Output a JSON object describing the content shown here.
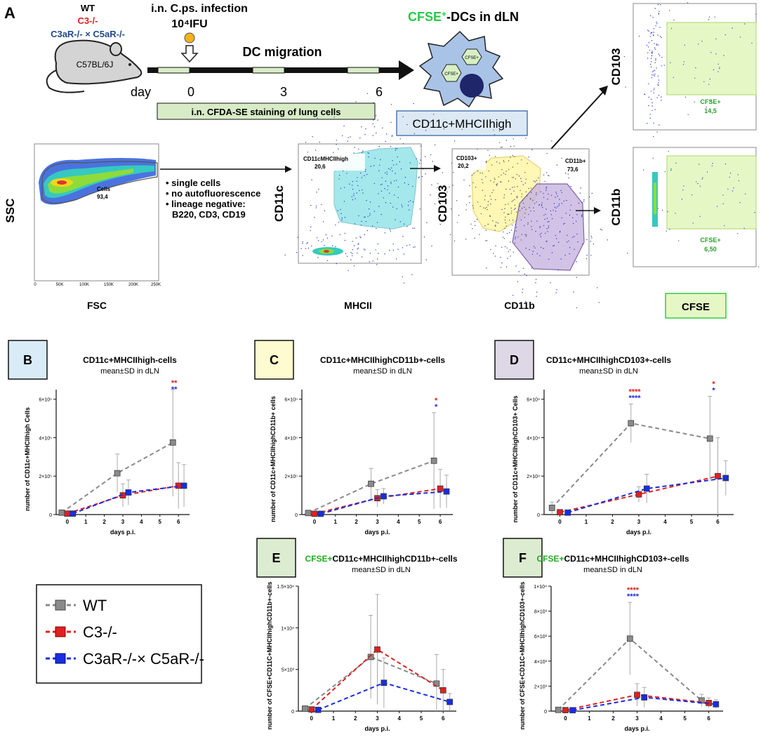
{
  "figure_label": "A",
  "strains": {
    "wt": "WT",
    "c3": "C3-/-",
    "c3a": "C3aR-/- × C5aR-/-",
    "mouse": "C57BL/6J"
  },
  "infection": {
    "line1": "i.n. C.ps. infection",
    "dose": "10⁴IFU"
  },
  "timeline": {
    "title": "DC migration",
    "day_label": "day",
    "days": [
      "0",
      "3",
      "6"
    ],
    "staining": "i.n. CFDA-SE staining of lung cells"
  },
  "dc": {
    "title_prefix": "CFSE",
    "title_suffix": "-DCs in dLN",
    "cell_label": "CFSE+",
    "pheno": "CD11c+MHCIIhigh"
  },
  "gating": {
    "ssc": "SSC",
    "fsc": "FSC",
    "cells_gate": "Cells",
    "cells_val": "93,4",
    "fsc_ticks": [
      "0",
      "50K",
      "100K",
      "150K",
      "200K",
      "250K"
    ],
    "bullets": [
      "• single cells",
      "• no autofluorescence",
      "• lineage negative:",
      "B220, CD3, CD19"
    ],
    "cd11c": "CD11c",
    "mhcii": "MHCII",
    "dc_gate": "CD11cMHCIIhigh",
    "dc_val": "20,6",
    "cd103": "CD103",
    "cd11b": "CD11b",
    "cd103_gate": "CD103+",
    "cd103_val": "20,2",
    "cd11b_gate": "CD11b+",
    "cd11b_val": "73,6",
    "cfse_gate": "CFSE+",
    "cfse103_val": "14,5",
    "cfse11b_val": "6,50",
    "cfse": "CFSE"
  },
  "legend": {
    "wt": "WT",
    "c3": "C3-/-",
    "c3a": "C3aR-/-× C5aR-/-"
  },
  "colors": {
    "wt": "#8a8a8a",
    "c3": "#e02020",
    "c3a": "#1a2de0",
    "cyan": "#5bd6dc",
    "yellow": "#fff3a0",
    "purple": "#9a7fbf",
    "green": "#33cc44"
  },
  "chart_data": [
    {
      "panel": "B",
      "type": "line",
      "title": "CD11c+MHCIIhigh-cells",
      "subtitle": "mean±SD in dLN",
      "xlabel": "days p.i.",
      "ylabel": "number of CD11c+MHCIIhigh Cells",
      "x": [
        0,
        3,
        6
      ],
      "ylim": [
        0,
        650000
      ],
      "yticks": [
        "0",
        "2×10⁵",
        "4×10⁵",
        "6×10⁵"
      ],
      "ytick_vals": [
        0,
        200000,
        400000,
        600000
      ],
      "series": [
        {
          "name": "WT",
          "values": [
            10000,
            215000,
            375000
          ],
          "sd": [
            5000,
            100000,
            280000
          ]
        },
        {
          "name": "C3-/-",
          "values": [
            5000,
            100000,
            150000
          ],
          "sd": [
            4000,
            60000,
            120000
          ]
        },
        {
          "name": "C3aR-/- × C5aR-/-",
          "values": [
            5000,
            115000,
            150000
          ],
          "sd": [
            4000,
            65000,
            110000
          ]
        }
      ],
      "stars": [
        {
          "x": 6,
          "red": "**",
          "blue": "**"
        }
      ]
    },
    {
      "panel": "C",
      "type": "line",
      "title": "CD11c+MHCIIhighCD11b+-cells",
      "subtitle": "mean±SD in dLN",
      "xlabel": "days p.i.",
      "ylabel": "number of CD11c+MHCIIhighCD11b+ cells",
      "x": [
        0,
        3,
        6
      ],
      "ylim": [
        0,
        650000
      ],
      "yticks": [
        "0",
        "2×10⁵",
        "4×10⁵",
        "6×10⁵"
      ],
      "ytick_vals": [
        0,
        200000,
        400000,
        600000
      ],
      "series": [
        {
          "name": "WT",
          "values": [
            8000,
            160000,
            280000
          ],
          "sd": [
            4000,
            80000,
            250000
          ]
        },
        {
          "name": "C3-/-",
          "values": [
            4000,
            85000,
            135000
          ],
          "sd": [
            3000,
            45000,
            100000
          ]
        },
        {
          "name": "C3aR-/- × C5aR-/-",
          "values": [
            4000,
            95000,
            120000
          ],
          "sd": [
            3000,
            40000,
            85000
          ]
        }
      ],
      "stars": [
        {
          "x": 6,
          "red": "*",
          "blue": "*"
        }
      ]
    },
    {
      "panel": "D",
      "type": "line",
      "title": "CD11c+MHCIIhighCD103+-cells",
      "subtitle": "mean±SD in dLN",
      "xlabel": "days p.i.",
      "ylabel": "number of CD11c+MHCIIhighCD103+ Cells",
      "x": [
        0,
        3,
        6
      ],
      "ylim": [
        0,
        65000
      ],
      "yticks": [
        "0",
        "2×10⁴",
        "4×10⁴",
        "6×10⁴"
      ],
      "ytick_vals": [
        0,
        20000,
        40000,
        60000
      ],
      "series": [
        {
          "name": "WT",
          "values": [
            3500,
            47500,
            39500
          ],
          "sd": [
            3000,
            10000,
            22000
          ]
        },
        {
          "name": "C3-/-",
          "values": [
            1200,
            10500,
            20000
          ],
          "sd": [
            1000,
            4000,
            20000
          ]
        },
        {
          "name": "C3aR-/- × C5aR-/-",
          "values": [
            1000,
            13500,
            19000
          ],
          "sd": [
            800,
            7500,
            9000
          ]
        }
      ],
      "stars": [
        {
          "x": 3,
          "red": "****",
          "blue": "****"
        },
        {
          "x": 6,
          "red": "*",
          "blue": "*"
        }
      ]
    },
    {
      "panel": "E",
      "type": "line",
      "title_prefix": "CFSE+",
      "title": "CD11c+MHCIIhighCD11b+-cells",
      "subtitle": "mean±SD in dLN",
      "xlabel": "days p.i.",
      "ylabel": "number of CFSE+CD11C+MHCIIhighCD11b+-cells",
      "x": [
        0,
        3,
        6
      ],
      "ylim": [
        0,
        15000
      ],
      "yticks": [
        "0",
        "5×10³",
        "1×10⁴",
        "1.5×10⁴"
      ],
      "ytick_vals": [
        0,
        5000,
        10000,
        15000
      ],
      "series": [
        {
          "name": "WT",
          "values": [
            300,
            6500,
            3300
          ],
          "sd": [
            300,
            5000,
            3500
          ]
        },
        {
          "name": "C3-/-",
          "values": [
            200,
            7400,
            2500
          ],
          "sd": [
            200,
            6600,
            2500
          ]
        },
        {
          "name": "C3aR-/- × C5aR-/-",
          "values": [
            150,
            3400,
            1100
          ],
          "sd": [
            150,
            3000,
            1000
          ]
        }
      ],
      "stars": []
    },
    {
      "panel": "F",
      "type": "line",
      "title_prefix": "CFSE+",
      "title": "CD11c+MHCIIhighCD103+-cells",
      "subtitle": "mean±SD in dLN",
      "xlabel": "days p.i.",
      "ylabel": "number of CFSE+CD11C+MHCIIhighCD103+-cells",
      "x": [
        0,
        3,
        6
      ],
      "ylim": [
        0,
        10000
      ],
      "yticks": [
        "0",
        "2×10³",
        "4×10³",
        "6×10³",
        "8×10³",
        "1×10⁴"
      ],
      "ytick_vals": [
        0,
        2000,
        4000,
        6000,
        8000,
        10000
      ],
      "series": [
        {
          "name": "WT",
          "values": [
            100,
            5800,
            850
          ],
          "sd": [
            100,
            2900,
            500
          ]
        },
        {
          "name": "C3-/-",
          "values": [
            80,
            1300,
            650
          ],
          "sd": [
            80,
            900,
            400
          ]
        },
        {
          "name": "C3aR-/- × C5aR-/-",
          "values": [
            70,
            1100,
            550
          ],
          "sd": [
            70,
            800,
            350
          ]
        }
      ],
      "stars": [
        {
          "x": 3,
          "red": "****",
          "blue": "****"
        }
      ]
    }
  ]
}
